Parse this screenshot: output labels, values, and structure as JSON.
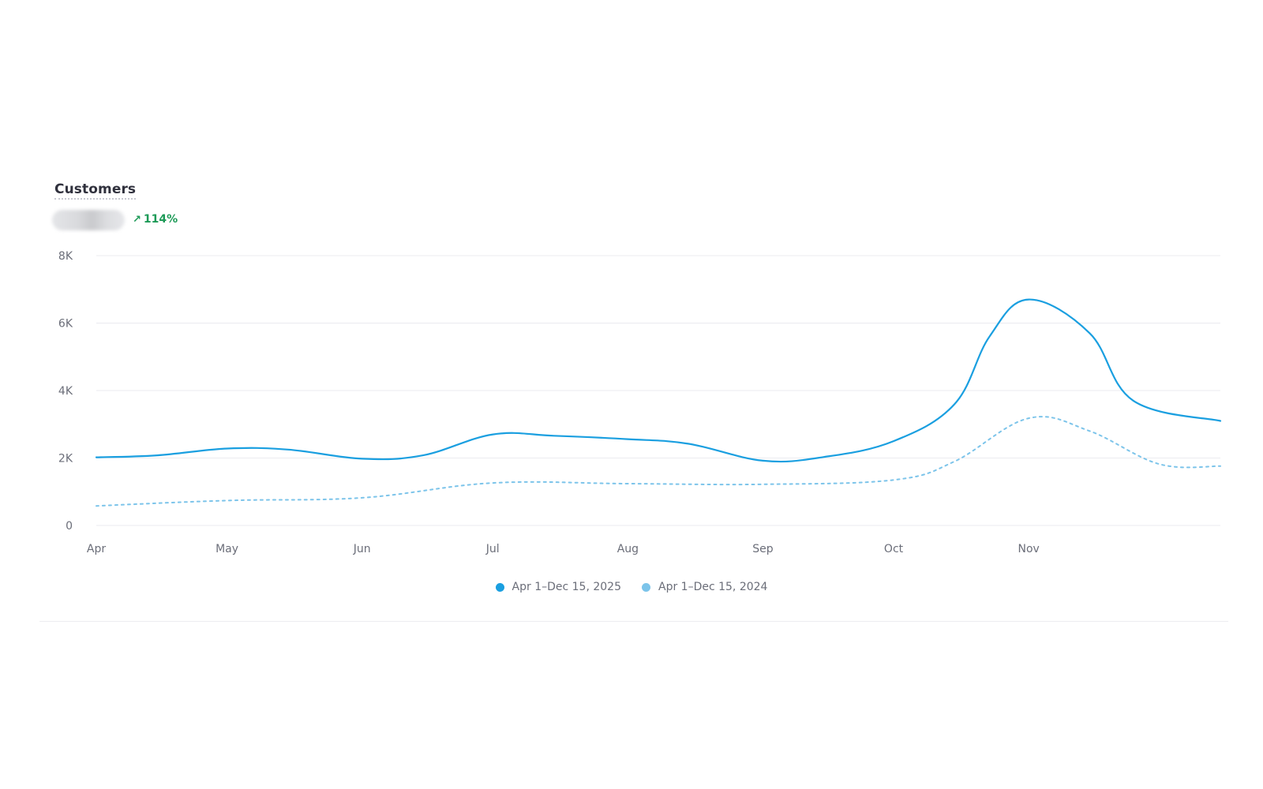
{
  "metric": {
    "title": "Customers",
    "change_arrow": "↗",
    "change_text": "114%",
    "change_color": "#1d9a57"
  },
  "legend": [
    {
      "label": "Apr 1–Dec 15, 2025",
      "color": "#1a9fe0",
      "style": "solid"
    },
    {
      "label": "Apr 1–Dec 15, 2024",
      "color": "#7cc4ea",
      "style": "dotted"
    }
  ],
  "chart_data": {
    "type": "line",
    "x_tick_labels": [
      "Apr",
      "May",
      "Jun",
      "Jul",
      "Aug",
      "Sep",
      "Oct",
      "Nov"
    ],
    "y_tick_labels": [
      "0",
      "2K",
      "4K",
      "6K",
      "8K"
    ],
    "y_ticks": [
      0,
      2000,
      4000,
      6000,
      8000
    ],
    "ylim": [
      0,
      8000
    ],
    "xlim": [
      "2025-04-01",
      "2025-12-15"
    ],
    "grid": true,
    "legend_position": "bottom-center",
    "series": [
      {
        "name": "Apr 1–Dec 15, 2025",
        "color": "#1a9fe0",
        "style": "solid",
        "points": [
          [
            "2025-04-01",
            2020
          ],
          [
            "2025-04-15",
            2080
          ],
          [
            "2025-05-01",
            2280
          ],
          [
            "2025-05-15",
            2250
          ],
          [
            "2025-06-01",
            1980
          ],
          [
            "2025-06-15",
            2080
          ],
          [
            "2025-07-01",
            2700
          ],
          [
            "2025-07-15",
            2660
          ],
          [
            "2025-08-01",
            2560
          ],
          [
            "2025-08-15",
            2420
          ],
          [
            "2025-09-01",
            1920
          ],
          [
            "2025-09-15",
            2030
          ],
          [
            "2025-10-01",
            2500
          ],
          [
            "2025-10-15",
            3600
          ],
          [
            "2025-10-23",
            5600
          ],
          [
            "2025-11-01",
            6700
          ],
          [
            "2025-11-15",
            5700
          ],
          [
            "2025-11-25",
            3700
          ],
          [
            "2025-12-15",
            3100
          ]
        ]
      },
      {
        "name": "Apr 1–Dec 15, 2024",
        "color": "#7cc4ea",
        "style": "dotted",
        "points": [
          [
            "2025-04-01",
            580
          ],
          [
            "2025-05-01",
            740
          ],
          [
            "2025-06-01",
            820
          ],
          [
            "2025-07-01",
            1260
          ],
          [
            "2025-08-01",
            1240
          ],
          [
            "2025-09-01",
            1220
          ],
          [
            "2025-10-01",
            1350
          ],
          [
            "2025-10-15",
            1900
          ],
          [
            "2025-11-01",
            3180
          ],
          [
            "2025-11-15",
            2800
          ],
          [
            "2025-12-01",
            1820
          ],
          [
            "2025-12-15",
            1760
          ]
        ]
      }
    ]
  }
}
